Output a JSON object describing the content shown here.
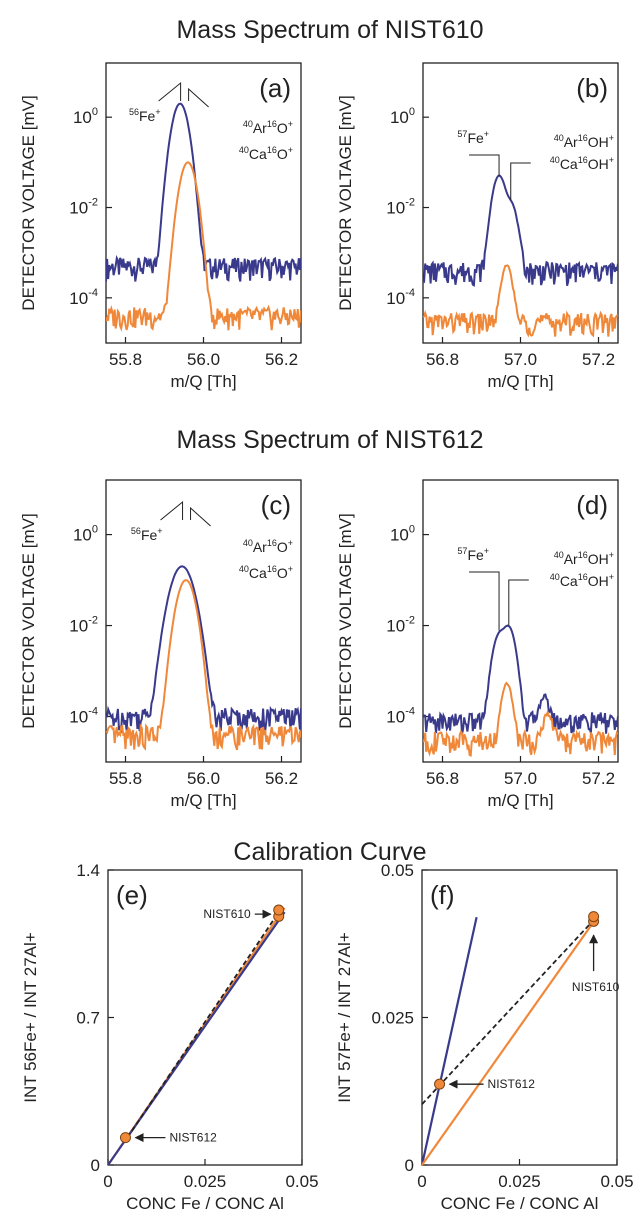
{
  "figure": {
    "section_titles": [
      "Mass Spectrum of NIST610",
      "Mass Spectrum of NIST612",
      "Calibration Curve"
    ]
  },
  "colors": {
    "blue": "#3a3a8c",
    "orange": "#f0883a",
    "black": "#222222"
  },
  "chart_data": [
    {
      "panel": "(a)",
      "type": "line",
      "section": "Mass Spectrum of NIST610",
      "xlabel": "m/Q [Th]",
      "ylabel": "DETECTOR VOLTAGE [mV]",
      "xlim": [
        55.75,
        56.25
      ],
      "ylim_log10": [
        -5.0,
        1.2
      ],
      "yscale": "log",
      "xticks": [
        "55.8",
        "56.0",
        "56.2"
      ],
      "yticks": [
        "10^0",
        "10^-2",
        "10^-4"
      ],
      "series": [
        {
          "color": "blue",
          "baseline": 0.0005,
          "peaks": [
            {
              "mz": 55.94,
              "height": 2.0,
              "sigma": 0.014
            }
          ]
        },
        {
          "color": "orange",
          "baseline": 4e-05,
          "peaks": [
            {
              "mz": 55.96,
              "height": 0.1,
              "sigma": 0.014
            }
          ]
        }
      ],
      "annotations": [
        {
          "label": "56Fe+",
          "mass": "56",
          "element": "Fe",
          "charge": "+"
        },
        {
          "label": "40Ar16O+",
          "parts": [
            [
              "40",
              "Ar"
            ],
            [
              "16",
              "O"
            ]
          ],
          "charge": "+"
        },
        {
          "label": "40Ca16O+",
          "parts": [
            [
              "40",
              "Ca"
            ],
            [
              "16",
              "O"
            ]
          ],
          "charge": "+"
        }
      ]
    },
    {
      "panel": "(b)",
      "type": "line",
      "section": "Mass Spectrum of NIST610",
      "xlabel": "m/Q [Th]",
      "ylabel": "DETECTOR VOLTAGE [mV]",
      "xlim": [
        56.75,
        57.25
      ],
      "ylim_log10": [
        -5.0,
        1.2
      ],
      "yscale": "log",
      "xticks": [
        "56.8",
        "57.0",
        "57.2"
      ],
      "yticks": [
        "10^0",
        "10^-2",
        "10^-4"
      ],
      "series": [
        {
          "color": "blue",
          "baseline": 0.0004,
          "peaks": [
            {
              "mz": 56.945,
              "height": 0.05,
              "sigma": 0.012
            },
            {
              "mz": 56.975,
              "height": 0.012,
              "sigma": 0.012
            }
          ]
        },
        {
          "color": "orange",
          "baseline": 3e-05,
          "peaks": [
            {
              "mz": 56.965,
              "height": 0.0005,
              "sigma": 0.01
            }
          ]
        }
      ],
      "annotations": [
        {
          "label": "57Fe+",
          "mass": "57",
          "element": "Fe",
          "charge": "+"
        },
        {
          "label": "40Ar16OH+",
          "parts": [
            [
              "40",
              "Ar"
            ],
            [
              "16",
              "OH"
            ]
          ],
          "charge": "+"
        },
        {
          "label": "40Ca16OH+",
          "parts": [
            [
              "40",
              "Ca"
            ],
            [
              "16",
              "OH"
            ]
          ],
          "charge": "+"
        }
      ]
    },
    {
      "panel": "(c)",
      "type": "line",
      "section": "Mass Spectrum of NIST612",
      "xlabel": "m/Q [Th]",
      "ylabel": "DETECTOR VOLTAGE [mV]",
      "xlim": [
        55.75,
        56.25
      ],
      "ylim_log10": [
        -5.0,
        1.2
      ],
      "yscale": "log",
      "xticks": [
        "55.8",
        "56.0",
        "56.2"
      ],
      "yticks": [
        "10^0",
        "10^-2",
        "10^-4"
      ],
      "series": [
        {
          "color": "blue",
          "baseline": 0.0001,
          "peaks": [
            {
              "mz": 55.945,
              "height": 0.2,
              "sigma": 0.02
            }
          ]
        },
        {
          "color": "orange",
          "baseline": 4e-05,
          "peaks": [
            {
              "mz": 55.955,
              "height": 0.1,
              "sigma": 0.016
            }
          ]
        }
      ],
      "annotations": [
        {
          "label": "56Fe+",
          "mass": "56",
          "element": "Fe",
          "charge": "+"
        },
        {
          "label": "40Ar16O+",
          "parts": [
            [
              "40",
              "Ar"
            ],
            [
              "16",
              "O"
            ]
          ],
          "charge": "+"
        },
        {
          "label": "40Ca16O+",
          "parts": [
            [
              "40",
              "Ca"
            ],
            [
              "16",
              "O"
            ]
          ],
          "charge": "+"
        }
      ]
    },
    {
      "panel": "(d)",
      "type": "line",
      "section": "Mass Spectrum of NIST612",
      "xlabel": "m/Q [Th]",
      "ylabel": "DETECTOR VOLTAGE [mV]",
      "xlim": [
        56.75,
        57.25
      ],
      "ylim_log10": [
        -5.0,
        1.2
      ],
      "yscale": "log",
      "xticks": [
        "56.8",
        "57.0",
        "57.2"
      ],
      "yticks": [
        "10^0",
        "10^-2",
        "10^-4"
      ],
      "series": [
        {
          "color": "blue",
          "baseline": 8e-05,
          "peaks": [
            {
              "mz": 56.945,
              "height": 0.006,
              "sigma": 0.012
            },
            {
              "mz": 56.97,
              "height": 0.009,
              "sigma": 0.012
            },
            {
              "mz": 57.06,
              "height": 0.0002,
              "sigma": 0.01
            }
          ]
        },
        {
          "color": "orange",
          "baseline": 3e-05,
          "peaks": [
            {
              "mz": 56.965,
              "height": 0.0005,
              "sigma": 0.01
            },
            {
              "mz": 57.07,
              "height": 8e-05,
              "sigma": 0.01
            }
          ]
        }
      ],
      "annotations": [
        {
          "label": "57Fe+",
          "mass": "57",
          "element": "Fe",
          "charge": "+"
        },
        {
          "label": "40Ar16OH+",
          "parts": [
            [
              "40",
              "Ar"
            ],
            [
              "16",
              "OH"
            ]
          ],
          "charge": "+"
        },
        {
          "label": "40Ca16OH+",
          "parts": [
            [
              "40",
              "Ca"
            ],
            [
              "16",
              "OH"
            ]
          ],
          "charge": "+"
        }
      ]
    },
    {
      "panel": "(e)",
      "type": "scatter",
      "section": "Calibration Curve",
      "xlabel": "CONC Fe / CONC Al",
      "ylabel": "INT 56Fe+ / INT 27Al+",
      "xlim": [
        0,
        0.05
      ],
      "ylim": [
        0,
        1.4
      ],
      "xticks": [
        "0",
        "0.025",
        "0.05"
      ],
      "yticks": [
        "0",
        "0.7",
        "1.4"
      ],
      "lines": [
        {
          "color": "orange",
          "style": "solid",
          "x": [
            0,
            0.0455
          ],
          "y": [
            0,
            1.22
          ]
        },
        {
          "color": "blue",
          "style": "solid",
          "x": [
            0,
            0.0455
          ],
          "y": [
            0,
            1.2
          ]
        },
        {
          "color": "black",
          "style": "dashed",
          "x": [
            0.005,
            0.044
          ],
          "y": [
            0.13,
            1.2
          ]
        }
      ],
      "points": [
        {
          "x": 0.0045,
          "y": 0.13
        },
        {
          "x": 0.044,
          "y": 1.18
        },
        {
          "x": 0.044,
          "y": 1.21
        }
      ],
      "annotations": [
        {
          "text": "NIST610",
          "target": [
            0.044,
            1.2
          ]
        },
        {
          "text": "NIST612",
          "target": [
            0.0045,
            0.13
          ]
        }
      ]
    },
    {
      "panel": "(f)",
      "type": "scatter",
      "section": "Calibration Curve",
      "xlabel": "CONC Fe / CONC Al",
      "ylabel": "INT 57Fe+ / INT 27Al+",
      "xlim": [
        0,
        0.05
      ],
      "ylim": [
        0,
        0.05
      ],
      "xticks": [
        "0",
        "0.025",
        "0.05"
      ],
      "yticks": [
        "0",
        "0.025",
        "0.05"
      ],
      "lines": [
        {
          "color": "blue",
          "style": "solid",
          "x": [
            0,
            0.014
          ],
          "y": [
            0,
            0.042
          ]
        },
        {
          "color": "orange",
          "style": "solid",
          "x": [
            0,
            0.044
          ],
          "y": [
            0,
            0.0412
          ]
        },
        {
          "color": "black",
          "style": "dashed",
          "x": [
            0,
            0.044
          ],
          "y": [
            0.0103,
            0.0415
          ]
        }
      ],
      "points": [
        {
          "x": 0.0045,
          "y": 0.0137
        },
        {
          "x": 0.044,
          "y": 0.0413
        },
        {
          "x": 0.044,
          "y": 0.0421
        }
      ],
      "annotations": [
        {
          "text": "NIST610",
          "target": [
            0.044,
            0.041
          ]
        },
        {
          "text": "NIST612",
          "target": [
            0.0045,
            0.0137
          ]
        }
      ]
    }
  ]
}
